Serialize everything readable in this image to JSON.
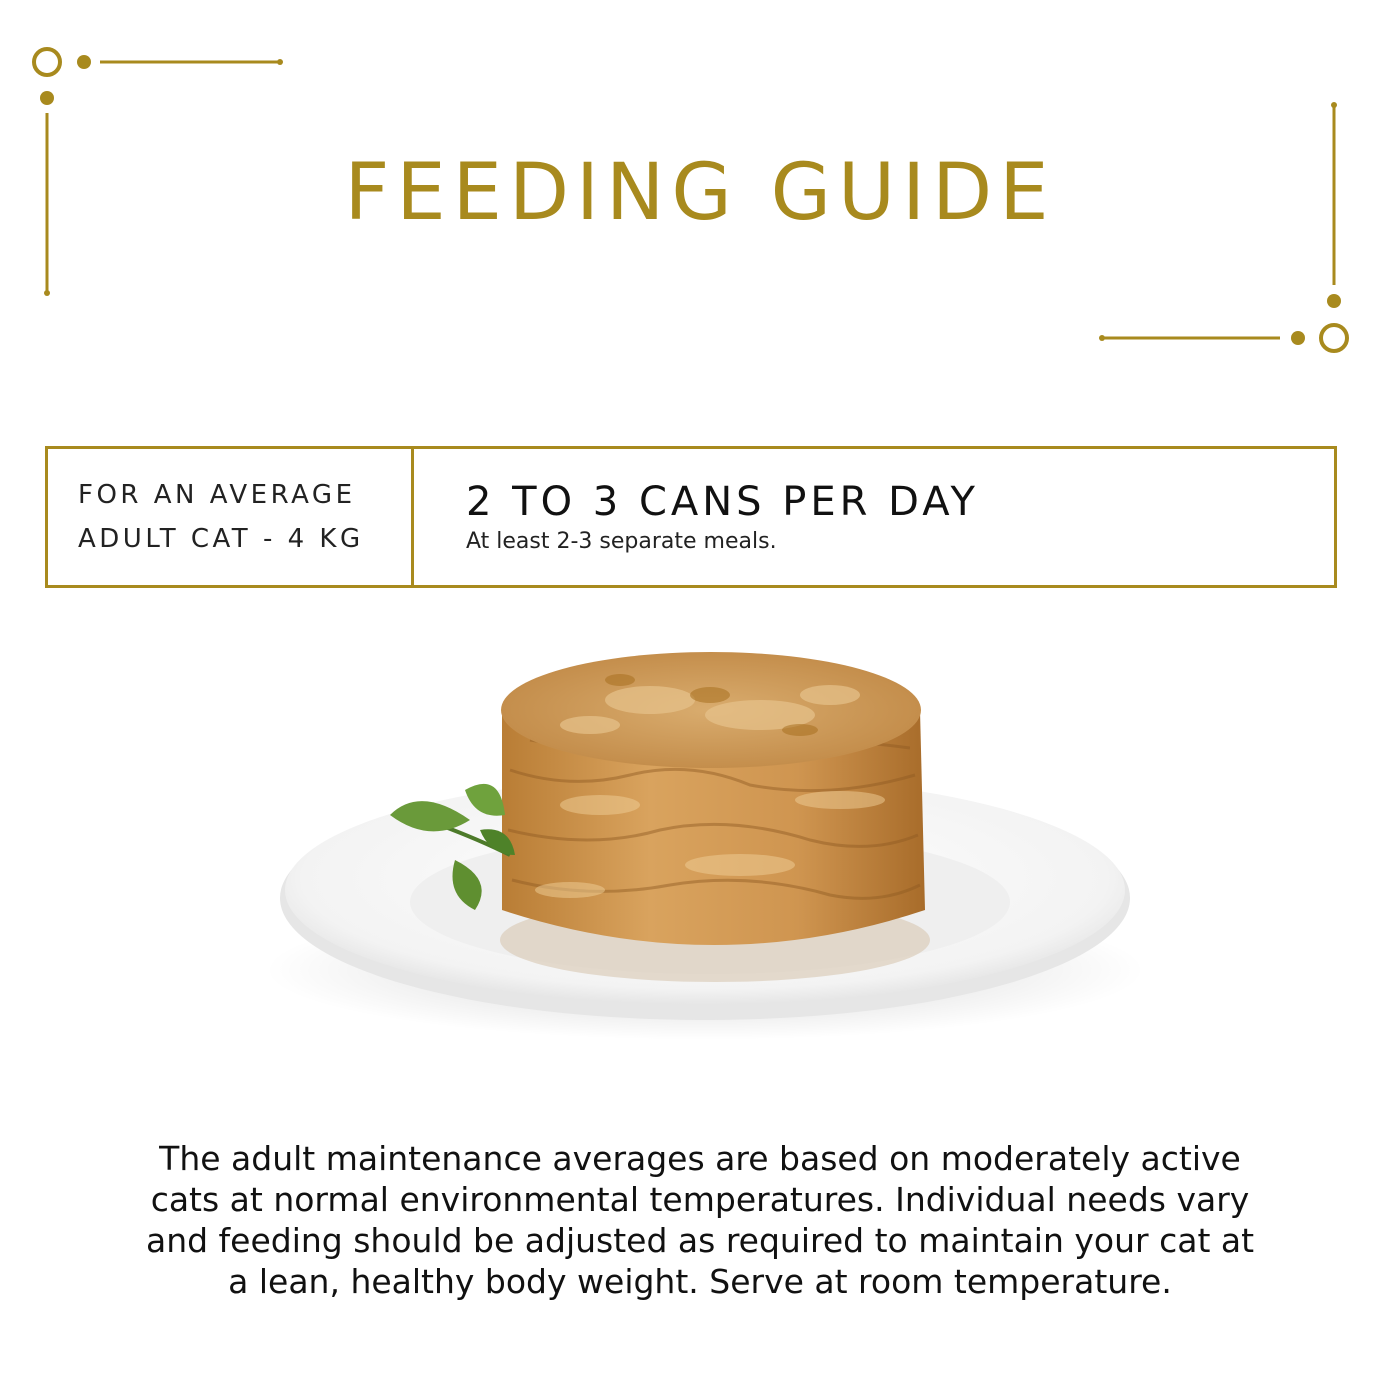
{
  "header": {
    "title": "FEEDING GUIDE"
  },
  "guide": {
    "cat_line1": "FOR AN AVERAGE",
    "cat_line2": "ADULT CAT - 4 KG",
    "amount": "2 TO 3 CANS PER DAY",
    "note": "At least 2-3 separate meals."
  },
  "description": "The adult maintenance averages are based on moderately active cats at normal environmental temperatures. Individual needs vary and feeding should be adjusted as required to maintain your cat at a lean, healthy body weight. Serve at room temperature.",
  "colors": {
    "accent_gold": "#a88a1e",
    "text": "#111111",
    "background": "#ffffff"
  },
  "images": {
    "food": "wet-cat-food-on-plate-with-herb"
  }
}
